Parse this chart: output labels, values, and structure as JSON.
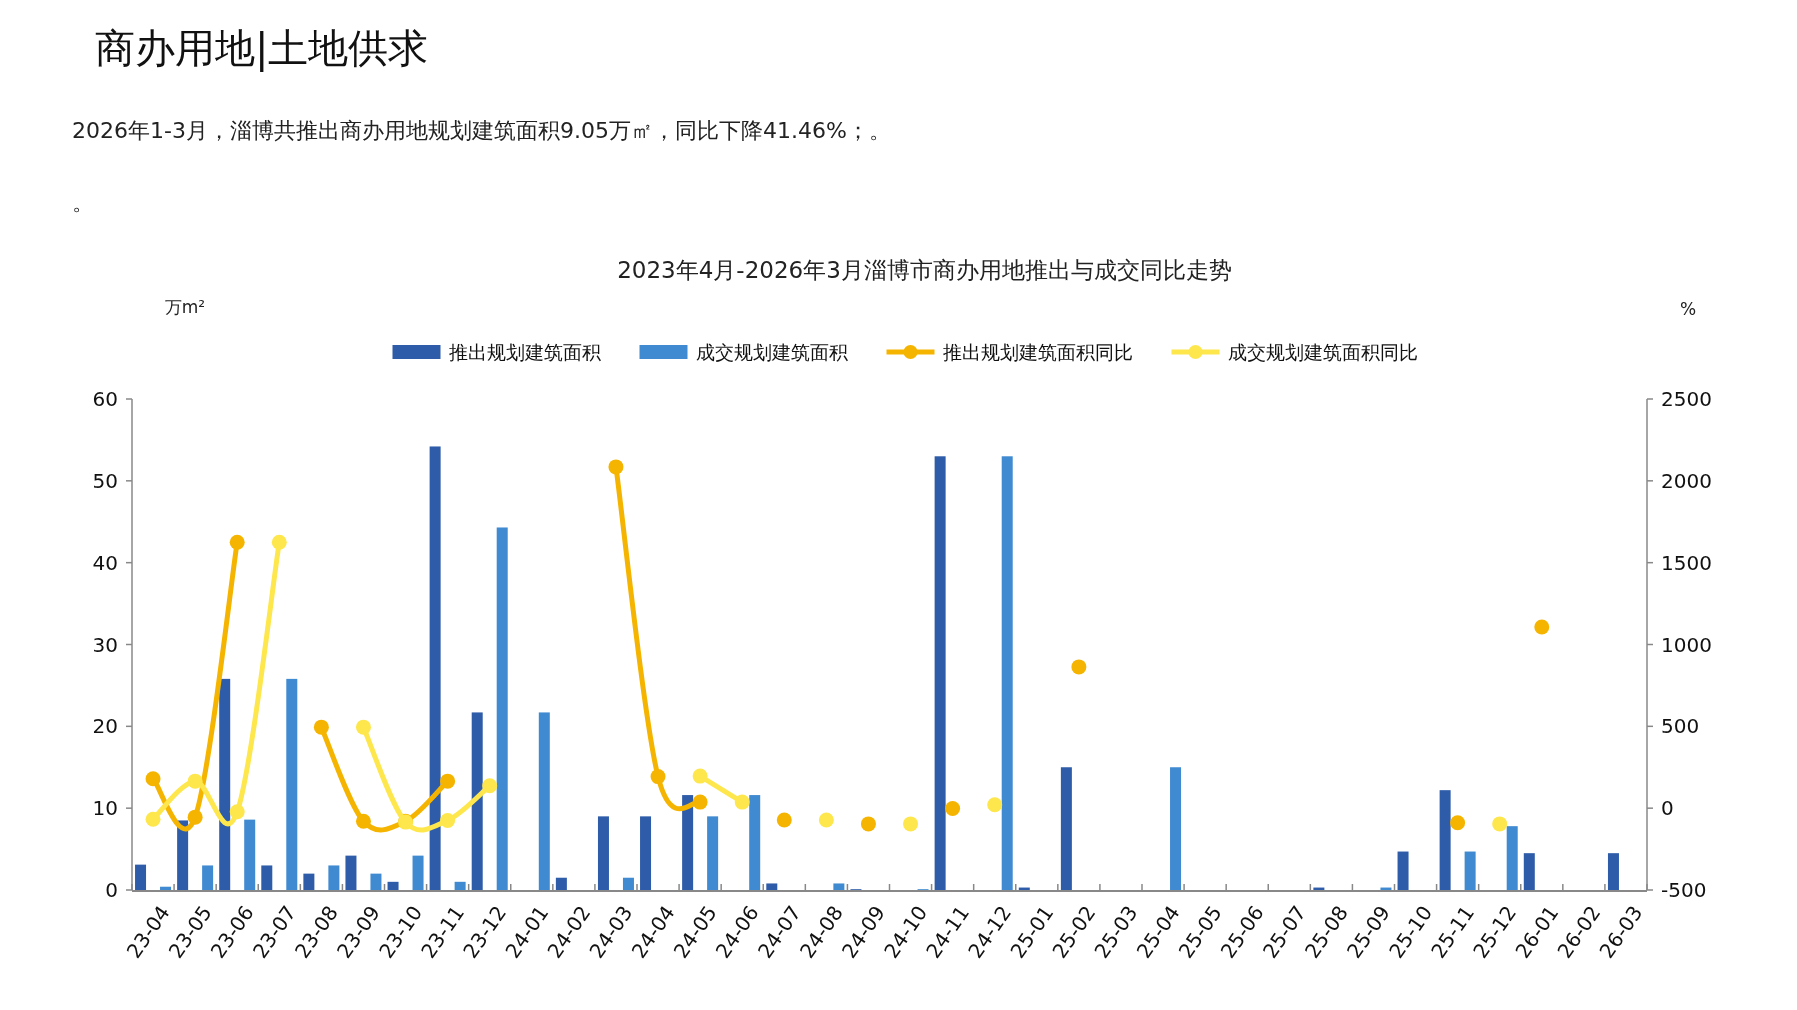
{
  "chart_data": {
    "type": "bar",
    "title": "2023年4月-2026年3月淄博市商办用地推出与成交同比走势",
    "annotations": [
      "商办用地|土地供求",
      "2026年1-3月，淄博共推出商办用地规划建筑面积9.05万㎡，同比下降41.46%；。",
      "。"
    ],
    "ylabel": "万m²",
    "y2label": "%",
    "categories": [
      "23-04",
      "23-05",
      "23-06",
      "23-07",
      "23-08",
      "23-09",
      "23-10",
      "23-11",
      "23-12",
      "24-01",
      "24-02",
      "24-03",
      "24-04",
      "24-05",
      "24-06",
      "24-07",
      "24-08",
      "24-09",
      "24-10",
      "24-11",
      "24-12",
      "25-01",
      "25-02",
      "25-03",
      "25-04",
      "25-05",
      "25-06",
      "25-07",
      "25-08",
      "25-09",
      "25-10",
      "25-11",
      "25-12",
      "26-01",
      "26-02",
      "26-03"
    ],
    "series": [
      {
        "name": "推出规划建筑面积",
        "color": "#2e5ca8",
        "values": [
          3.1,
          8.5,
          25.8,
          3,
          2,
          4.2,
          1,
          54.2,
          21.7,
          0,
          1.5,
          9,
          9,
          11.6,
          0,
          0.8,
          0,
          0.1,
          0,
          53,
          0,
          0.3,
          15,
          0,
          0,
          0,
          0,
          0,
          0.3,
          0,
          4.7,
          12.2,
          0,
          4.5,
          0,
          4.5
        ]
      },
      {
        "name": "成交规划建筑面积",
        "color": "#3f8ad0",
        "values": [
          0.4,
          3,
          8.6,
          25.8,
          3,
          2,
          4.2,
          1,
          44.3,
          21.7,
          0,
          1.5,
          0,
          9,
          11.6,
          0,
          0.8,
          0,
          0.1,
          0,
          53,
          0,
          0,
          0,
          15,
          0,
          0,
          0,
          0,
          0.3,
          0,
          4.7,
          7.8,
          0,
          0,
          0
        ]
      },
      {
        "name": "推出规划建筑面积同比",
        "type": "line",
        "axis": "y2",
        "marker": "circle",
        "color": "#f5b400",
        "values": [
          180,
          -55,
          1625,
          null,
          495,
          -80,
          -80,
          165,
          null,
          null,
          null,
          2085,
          193,
          37,
          null,
          -72,
          null,
          -96,
          null,
          -2,
          null,
          null,
          863,
          null,
          null,
          null,
          null,
          null,
          null,
          null,
          null,
          -89,
          null,
          1107,
          null,
          null
        ]
      },
      {
        "name": "成交规划建筑面积同比",
        "type": "line",
        "axis": "y2",
        "marker": "circle",
        "color": "#fde74c",
        "values": [
          -68,
          165,
          -22,
          1625,
          null,
          495,
          -85,
          -75,
          137,
          null,
          null,
          null,
          null,
          196,
          37,
          null,
          -72,
          null,
          -96,
          null,
          21,
          null,
          null,
          null,
          null,
          null,
          null,
          null,
          null,
          null,
          null,
          null,
          -96,
          null,
          null,
          null
        ]
      }
    ],
    "ylim": [
      0,
      60
    ],
    "yticks": [
      0,
      10,
      20,
      30,
      40,
      50,
      60
    ],
    "y2lim": [
      -500,
      2500
    ],
    "y2ticks": [
      -500,
      0,
      500,
      1000,
      1500,
      2000,
      2500
    ],
    "legend": "top",
    "grid": false,
    "line_style": "solid"
  }
}
